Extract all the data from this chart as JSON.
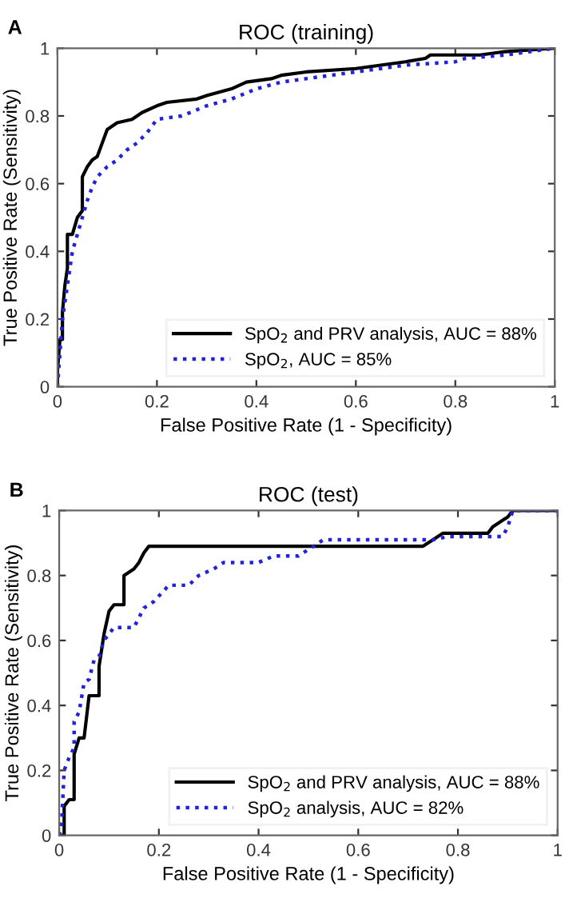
{
  "chart_data": [
    {
      "type": "line",
      "title": "ROC (training)",
      "xlabel": "False Positive Rate (1 - Specificity)",
      "ylabel": "True Positive Rate (Sensitivity)",
      "annotations": [
        "A"
      ],
      "xlim": [
        0,
        1
      ],
      "ylim": [
        0,
        1
      ],
      "xticks": [
        0,
        0.2,
        0.4,
        0.6,
        0.8,
        1
      ],
      "yticks": [
        0,
        0.2,
        0.4,
        0.6,
        0.8,
        1
      ],
      "legend": "bottom right",
      "series": [
        {
          "name": "SpO$_{2}$ and PRV analysis, AUC = 88%",
          "color": "#000000",
          "line_style": "solid",
          "x": [
            0,
            0,
            0.005,
            0.01,
            0.01,
            0.015,
            0.02,
            0.02,
            0.03,
            0.04,
            0.05,
            0.05,
            0.06,
            0.07,
            0.08,
            0.09,
            0.1,
            0.12,
            0.15,
            0.17,
            0.2,
            0.22,
            0.28,
            0.3,
            0.35,
            0.38,
            0.43,
            0.45,
            0.5,
            0.6,
            0.7,
            0.74,
            0.75,
            0.85,
            0.9,
            1
          ],
          "values": [
            0,
            0.05,
            0.14,
            0.14,
            0.22,
            0.3,
            0.35,
            0.45,
            0.45,
            0.5,
            0.52,
            0.62,
            0.65,
            0.67,
            0.68,
            0.72,
            0.76,
            0.78,
            0.79,
            0.81,
            0.83,
            0.84,
            0.85,
            0.86,
            0.88,
            0.9,
            0.91,
            0.92,
            0.93,
            0.94,
            0.96,
            0.97,
            0.98,
            0.98,
            0.99,
            1
          ]
        },
        {
          "name": "SpO$_{2}$, AUC = 85%",
          "color": "#2222dd",
          "line_style": "dotted",
          "x": [
            0,
            0.005,
            0.01,
            0.02,
            0.03,
            0.04,
            0.05,
            0.06,
            0.07,
            0.08,
            0.1,
            0.12,
            0.14,
            0.16,
            0.18,
            0.2,
            0.25,
            0.3,
            0.35,
            0.4,
            0.45,
            0.5,
            0.6,
            0.7,
            0.8,
            0.82,
            0.9,
            1
          ],
          "values": [
            0,
            0.1,
            0.2,
            0.3,
            0.4,
            0.45,
            0.5,
            0.55,
            0.59,
            0.62,
            0.65,
            0.67,
            0.7,
            0.72,
            0.75,
            0.79,
            0.8,
            0.83,
            0.85,
            0.88,
            0.9,
            0.91,
            0.93,
            0.95,
            0.96,
            0.97,
            0.98,
            1
          ]
        }
      ]
    },
    {
      "type": "line",
      "title": "ROC (test)",
      "xlabel": "False Positive Rate (1 - Specificity)",
      "ylabel": "True Positive Rate (Sensitivity)",
      "annotations": [
        "B"
      ],
      "xlim": [
        0,
        1
      ],
      "ylim": [
        0,
        1
      ],
      "xticks": [
        0,
        0.2,
        0.4,
        0.6,
        0.8,
        1
      ],
      "yticks": [
        0,
        0.2,
        0.4,
        0.6,
        0.8,
        1
      ],
      "legend": "bottom right",
      "series": [
        {
          "name": "SpO$_{2}$ and PRV analysis, AUC = 88%",
          "color": "#000000",
          "line_style": "solid",
          "x": [
            0,
            0.01,
            0.01,
            0.02,
            0.03,
            0.03,
            0.04,
            0.05,
            0.06,
            0.08,
            0.08,
            0.09,
            0.1,
            0.11,
            0.13,
            0.13,
            0.15,
            0.16,
            0.17,
            0.18,
            0.73,
            0.75,
            0.77,
            0.86,
            0.87,
            0.89,
            0.9,
            0.91,
            1
          ],
          "values": [
            0,
            0,
            0.09,
            0.11,
            0.11,
            0.25,
            0.3,
            0.3,
            0.43,
            0.43,
            0.52,
            0.62,
            0.69,
            0.71,
            0.71,
            0.8,
            0.82,
            0.84,
            0.87,
            0.89,
            0.89,
            0.91,
            0.93,
            0.93,
            0.95,
            0.97,
            0.98,
            1,
            1
          ]
        },
        {
          "name": "SpO$_{2}$ analysis, AUC = 82%",
          "color": "#2222dd",
          "line_style": "dotted",
          "x": [
            0,
            0.005,
            0.01,
            0.02,
            0.03,
            0.03,
            0.04,
            0.05,
            0.06,
            0.07,
            0.08,
            0.09,
            0.1,
            0.11,
            0.15,
            0.17,
            0.19,
            0.22,
            0.26,
            0.28,
            0.31,
            0.33,
            0.4,
            0.43,
            0.48,
            0.51,
            0.53,
            0.75,
            0.78,
            0.89,
            0.9,
            0.91,
            1
          ],
          "values": [
            0,
            0.04,
            0.2,
            0.24,
            0.27,
            0.35,
            0.38,
            0.47,
            0.48,
            0.54,
            0.55,
            0.6,
            0.62,
            0.64,
            0.64,
            0.7,
            0.72,
            0.77,
            0.77,
            0.8,
            0.82,
            0.84,
            0.84,
            0.86,
            0.86,
            0.89,
            0.91,
            0.91,
            0.92,
            0.92,
            0.95,
            1,
            1
          ]
        }
      ]
    }
  ]
}
